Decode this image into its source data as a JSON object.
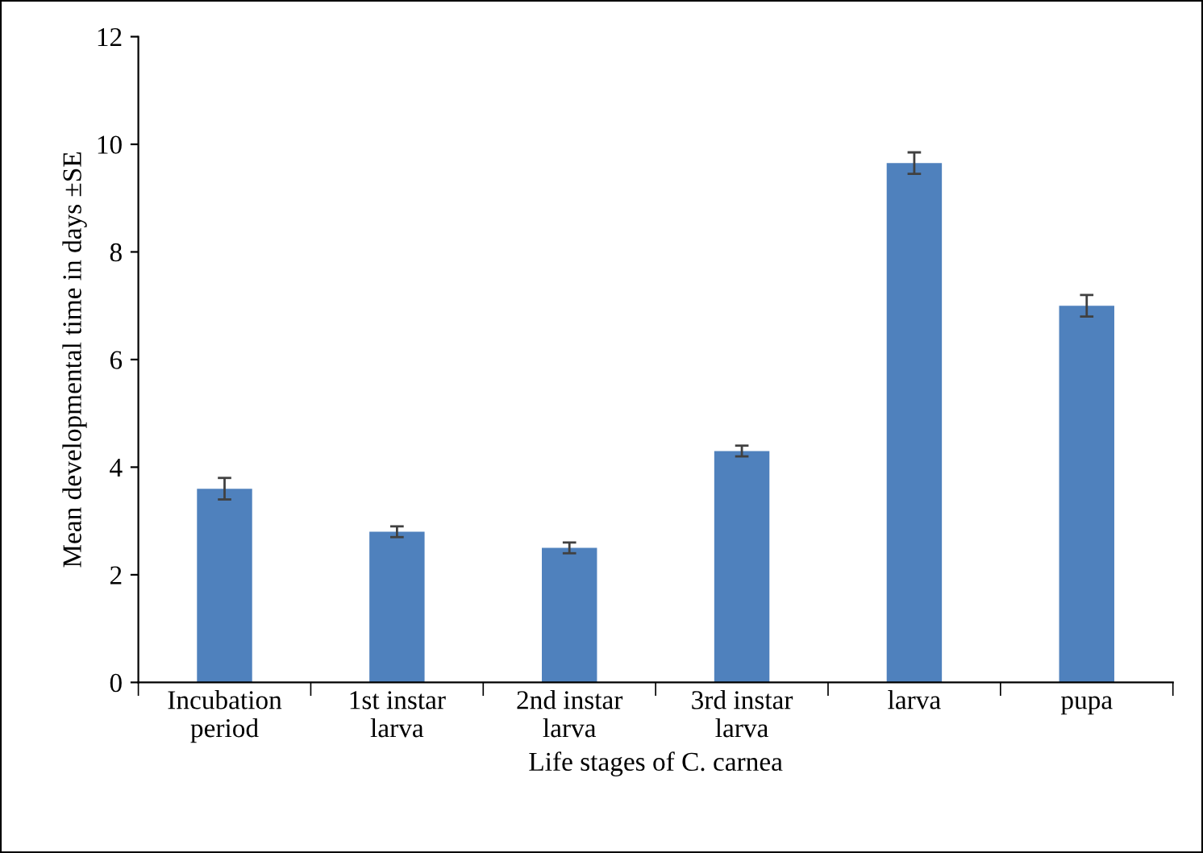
{
  "chart_data": {
    "type": "bar",
    "xlabel": "Life stages of C. carnea",
    "ylabel": "Mean developmental time in days ±SE",
    "categories": [
      "Incubation\nperiod",
      "1st instar\nlarva",
      "2nd instar\nlarva",
      "3rd instar\nlarva",
      "larva",
      "pupa"
    ],
    "values": [
      3.6,
      2.8,
      2.5,
      4.3,
      9.65,
      7.0
    ],
    "errors": [
      0.2,
      0.1,
      0.1,
      0.1,
      0.2,
      0.2
    ],
    "color": "#4f81bd",
    "ylim": [
      0,
      12
    ],
    "yticks": [
      0,
      2,
      4,
      6,
      8,
      10,
      12
    ],
    "grid": false,
    "legend": false
  }
}
